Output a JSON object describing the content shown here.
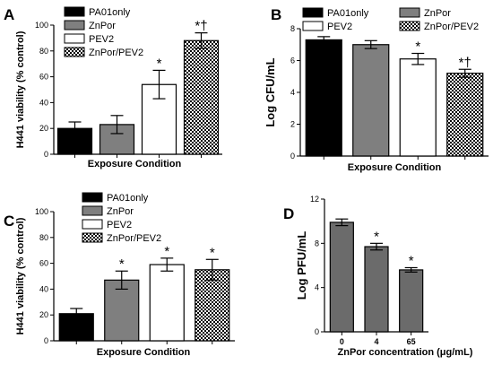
{
  "chart_data": [
    {
      "panel": "A",
      "type": "bar",
      "categories": [
        "PA01only",
        "ZnPor",
        "PEV2",
        "ZnPor/PEV2"
      ],
      "values": [
        20,
        23,
        54,
        88
      ],
      "errors": [
        5,
        7,
        11,
        6
      ],
      "annotations": [
        "",
        "",
        "*",
        "*†"
      ],
      "ylabel": "H441 viability (% control)",
      "xlabel": "Exposure Condition",
      "ylim": [
        0,
        100
      ],
      "yticks": [
        "0",
        "20",
        "40",
        "60",
        "80",
        "100"
      ],
      "legend": [
        "PA01only",
        "ZnPor",
        "PEV2",
        "ZnPor/PEV2"
      ],
      "legend_position": "top-left",
      "colors": [
        "#000000",
        "#7f7f7f",
        "#ffffff",
        "pattern"
      ]
    },
    {
      "panel": "B",
      "type": "bar",
      "categories": [
        "PA01only",
        "ZnPor",
        "PEV2",
        "ZnPor/PEV2"
      ],
      "values": [
        7.3,
        7.0,
        6.1,
        5.2
      ],
      "errors": [
        0.2,
        0.25,
        0.35,
        0.25
      ],
      "annotations": [
        "",
        "",
        "*",
        "*†"
      ],
      "ylabel": "Log CFU/mL",
      "xlabel": "Exposure Condition",
      "ylim": [
        0,
        8
      ],
      "yticks": [
        "0",
        "2",
        "4",
        "6",
        "8"
      ],
      "legend": [
        "PA01only",
        "ZnPor",
        "PEV2",
        "ZnPor/PEV2"
      ],
      "legend_position": "top",
      "colors": [
        "#000000",
        "#7f7f7f",
        "#ffffff",
        "pattern"
      ]
    },
    {
      "panel": "C",
      "type": "bar",
      "categories": [
        "PA01only",
        "ZnPor",
        "PEV2",
        "ZnPor/PEV2"
      ],
      "values": [
        21,
        47,
        59,
        55
      ],
      "errors": [
        4,
        7,
        5,
        8
      ],
      "annotations": [
        "",
        "*",
        "*",
        "*"
      ],
      "ylabel": "H441 viability (% control)",
      "xlabel": "Exposure Condition",
      "ylim": [
        0,
        100
      ],
      "yticks": [
        "0",
        "20",
        "40",
        "60",
        "80",
        "100"
      ],
      "legend": [
        "PA01only",
        "ZnPor",
        "PEV2",
        "ZnPor/PEV2"
      ],
      "legend_position": "top-right",
      "colors": [
        "#000000",
        "#7f7f7f",
        "#ffffff",
        "pattern"
      ]
    },
    {
      "panel": "D",
      "type": "bar",
      "categories": [
        "0",
        "4",
        "65"
      ],
      "values": [
        9.9,
        7.7,
        5.6
      ],
      "errors": [
        0.3,
        0.3,
        0.2
      ],
      "annotations": [
        "",
        "*",
        "*"
      ],
      "ylabel": "Log PFU/mL",
      "xlabel": "ZnPor concentration  (μg/mL)",
      "ylim": [
        0,
        12
      ],
      "yticks": [
        "0",
        "4",
        "8",
        "12"
      ],
      "colors": [
        "#6b6b6b",
        "#6b6b6b",
        "#6b6b6b"
      ]
    }
  ]
}
